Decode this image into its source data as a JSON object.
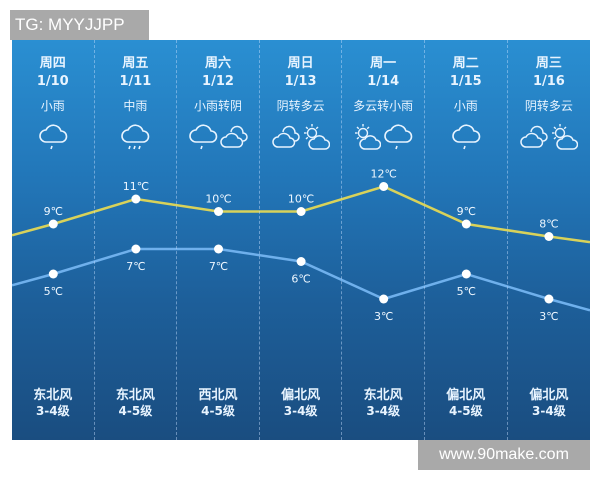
{
  "watermark_top": "TG: MYYJJPP",
  "watermark_bottom": "www.90make.com",
  "colors": {
    "high_line": "#d8d25a",
    "low_line": "#6fb0ec",
    "point": "#ffffff"
  },
  "days": [
    {
      "day": "周四",
      "date": "1/10",
      "cond": "小雨",
      "icons": [
        "light-rain"
      ],
      "high": "9℃",
      "low": "5℃",
      "wind": "东北风",
      "level": "3-4级"
    },
    {
      "day": "周五",
      "date": "1/11",
      "cond": "中雨",
      "icons": [
        "moderate-rain"
      ],
      "high": "11℃",
      "low": "7℃",
      "wind": "东北风",
      "level": "4-5级"
    },
    {
      "day": "周六",
      "date": "1/12",
      "cond": "小雨转阴",
      "icons": [
        "light-rain",
        "overcast"
      ],
      "high": "10℃",
      "low": "7℃",
      "wind": "西北风",
      "level": "4-5级"
    },
    {
      "day": "周日",
      "date": "1/13",
      "cond": "阴转多云",
      "icons": [
        "overcast",
        "partly-cloudy"
      ],
      "high": "10℃",
      "low": "6℃",
      "wind": "偏北风",
      "level": "3-4级"
    },
    {
      "day": "周一",
      "date": "1/14",
      "cond": "多云转小雨",
      "icons": [
        "partly-cloudy",
        "light-rain"
      ],
      "high": "12℃",
      "low": "3℃",
      "wind": "东北风",
      "level": "3-4级"
    },
    {
      "day": "周二",
      "date": "1/15",
      "cond": "小雨",
      "icons": [
        "light-rain"
      ],
      "high": "9℃",
      "low": "5℃",
      "wind": "偏北风",
      "level": "4-5级"
    },
    {
      "day": "周三",
      "date": "1/16",
      "cond": "阴转多云",
      "icons": [
        "overcast",
        "partly-cloudy"
      ],
      "high": "8℃",
      "low": "3℃",
      "wind": "偏北风",
      "level": "3-4级"
    }
  ],
  "chart_data": {
    "type": "line",
    "categories": [
      "1/10",
      "1/11",
      "1/12",
      "1/13",
      "1/14",
      "1/15",
      "1/16"
    ],
    "series": [
      {
        "values": [
          9,
          11,
          10,
          10,
          12,
          9,
          8
        ]
      },
      {
        "values": [
          5,
          7,
          7,
          6,
          3,
          5,
          3
        ]
      }
    ]
  }
}
